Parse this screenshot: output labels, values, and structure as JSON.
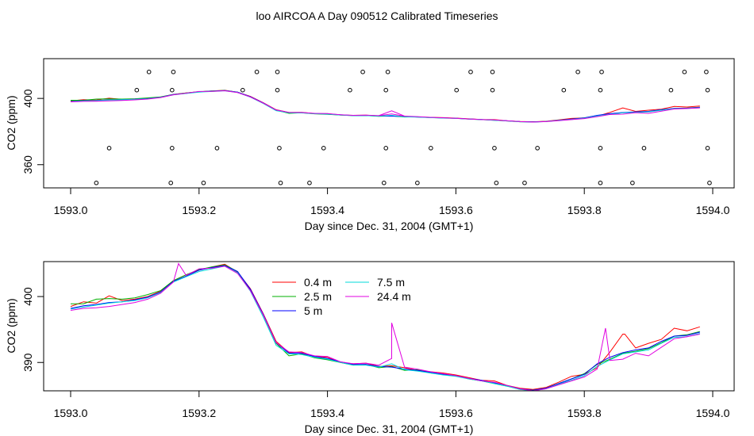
{
  "title": "loo AIRCOA A  Day 090512  Calibrated Timeseries",
  "chart_data": [
    {
      "type": "scatter",
      "note_layers": "overview panel: colored series lines plus open-circle markers",
      "xlabel": "Day since Dec. 31, 2004 (GMT+1)",
      "ylabel": "CO2 (ppm)",
      "xlim": [
        1593.0,
        1594.0
      ],
      "ylim": [
        346,
        424
      ],
      "xticks": [
        "1593.0",
        "1593.2",
        "1593.4",
        "1593.6",
        "1593.8",
        "1594.0"
      ],
      "yticks": [
        "360",
        "400"
      ],
      "ytick_values": [
        360,
        400
      ],
      "grid": false,
      "series_colors": [
        "#ff0000",
        "#00b000",
        "#0000ff",
        "#00d8d8",
        "#e000e0"
      ],
      "markers": [
        [
          1593.122,
          416
        ],
        [
          1593.16,
          416
        ],
        [
          1593.29,
          416
        ],
        [
          1593.322,
          416
        ],
        [
          1593.455,
          416
        ],
        [
          1593.494,
          416
        ],
        [
          1593.623,
          416
        ],
        [
          1593.657,
          416
        ],
        [
          1593.79,
          416
        ],
        [
          1593.827,
          416
        ],
        [
          1593.956,
          416
        ],
        [
          1593.99,
          416
        ],
        [
          1593.103,
          405
        ],
        [
          1593.158,
          405
        ],
        [
          1593.268,
          405
        ],
        [
          1593.322,
          405
        ],
        [
          1593.435,
          405
        ],
        [
          1593.491,
          405
        ],
        [
          1593.601,
          405
        ],
        [
          1593.657,
          405
        ],
        [
          1593.768,
          405
        ],
        [
          1593.825,
          405
        ],
        [
          1593.935,
          405
        ],
        [
          1593.992,
          405
        ],
        [
          1593.06,
          370
        ],
        [
          1593.158,
          370
        ],
        [
          1593.228,
          370
        ],
        [
          1593.325,
          370
        ],
        [
          1593.394,
          370
        ],
        [
          1593.491,
          370
        ],
        [
          1593.561,
          370
        ],
        [
          1593.66,
          370
        ],
        [
          1593.727,
          370
        ],
        [
          1593.825,
          370
        ],
        [
          1593.893,
          370
        ],
        [
          1593.992,
          370
        ],
        [
          1593.04,
          349
        ],
        [
          1593.156,
          349
        ],
        [
          1593.207,
          349
        ],
        [
          1593.327,
          349
        ],
        [
          1593.372,
          349
        ],
        [
          1593.488,
          349
        ],
        [
          1593.54,
          349
        ],
        [
          1593.663,
          349
        ],
        [
          1593.707,
          349
        ],
        [
          1593.825,
          349
        ],
        [
          1593.875,
          349
        ],
        [
          1593.995,
          349
        ]
      ]
    },
    {
      "type": "line",
      "xlabel": "Day since Dec. 31, 2004 (GMT+1)",
      "ylabel": "CO2 (ppm)",
      "xlim": [
        1593.0,
        1594.0
      ],
      "ylim": [
        385.7,
        405.3
      ],
      "xticks": [
        "1593.0",
        "1593.2",
        "1593.4",
        "1593.6",
        "1593.8",
        "1594.0"
      ],
      "yticks": [
        "390",
        "400"
      ],
      "ytick_values": [
        390,
        400
      ],
      "grid": false,
      "legend_position": "top-center",
      "x": [
        1593.0,
        1593.02,
        1593.04,
        1593.06,
        1593.08,
        1593.1,
        1593.12,
        1593.14,
        1593.16,
        1593.18,
        1593.2,
        1593.22,
        1593.24,
        1593.26,
        1593.28,
        1593.3,
        1593.32,
        1593.34,
        1593.36,
        1593.38,
        1593.4,
        1593.42,
        1593.44,
        1593.46,
        1593.48,
        1593.5,
        1593.52,
        1593.54,
        1593.56,
        1593.58,
        1593.6,
        1593.62,
        1593.64,
        1593.66,
        1593.68,
        1593.7,
        1593.72,
        1593.74,
        1593.76,
        1593.78,
        1593.8,
        1593.82,
        1593.84,
        1593.86,
        1593.88,
        1593.9,
        1593.92,
        1593.94,
        1593.96,
        1593.98
      ],
      "series": [
        {
          "name": "0.4 m",
          "color": "#ff0000",
          "values": [
            398.5,
            399.2,
            399.0,
            400.1,
            399.4,
            399.6,
            400.0,
            400.8,
            402.4,
            403.3,
            404.0,
            404.5,
            404.9,
            403.7,
            401.2,
            397.4,
            393.2,
            391.5,
            391.6,
            390.9,
            390.8,
            390.0,
            389.8,
            389.9,
            389.4,
            389.5,
            389.2,
            388.8,
            388.6,
            388.4,
            388.1,
            387.7,
            387.3,
            387.2,
            386.5,
            386.1,
            385.9,
            386.2,
            387.0,
            387.9,
            388.2,
            389.2,
            391.6,
            394.3,
            392.2,
            392.9,
            393.5,
            395.2,
            394.8,
            395.4
          ]
        },
        {
          "name": "2.5 m",
          "color": "#00b000",
          "values": [
            398.9,
            398.9,
            399.6,
            399.7,
            399.6,
            399.8,
            400.3,
            400.9,
            402.4,
            403.3,
            404.1,
            404.5,
            404.8,
            403.8,
            401.0,
            397.2,
            392.9,
            391.0,
            391.3,
            390.7,
            390.4,
            390.0,
            389.6,
            389.7,
            389.2,
            389.4,
            388.8,
            388.9,
            388.4,
            388.2,
            388.0,
            387.5,
            387.2,
            386.8,
            386.4,
            385.9,
            385.8,
            386.1,
            386.8,
            387.5,
            388.3,
            389.7,
            390.5,
            391.4,
            391.7,
            392.1,
            393.0,
            394.0,
            394.2,
            394.7
          ]
        },
        {
          "name": "5 m",
          "color": "#0000ff",
          "values": [
            398.2,
            398.6,
            398.8,
            399.1,
            399.2,
            399.5,
            399.9,
            400.7,
            402.3,
            403.1,
            404.0,
            404.4,
            404.7,
            403.8,
            401.1,
            397.3,
            393.0,
            391.4,
            391.4,
            390.9,
            390.6,
            390.1,
            389.7,
            389.7,
            389.4,
            389.3,
            389.0,
            388.8,
            388.5,
            388.2,
            388.0,
            387.6,
            387.3,
            386.9,
            386.5,
            386.0,
            385.8,
            386.1,
            386.8,
            387.5,
            388.2,
            389.8,
            390.8,
            391.5,
            391.9,
            392.2,
            393.2,
            394.0,
            394.1,
            394.6
          ]
        },
        {
          "name": "7.5 m",
          "color": "#00d8d8",
          "values": [
            398.1,
            398.4,
            398.7,
            399.0,
            399.2,
            399.4,
            399.8,
            400.6,
            402.2,
            403.0,
            403.8,
            404.2,
            404.6,
            403.6,
            400.8,
            396.9,
            392.6,
            391.3,
            391.2,
            390.8,
            390.5,
            390.0,
            389.6,
            389.6,
            389.3,
            389.8,
            388.9,
            388.7,
            388.4,
            388.1,
            387.9,
            387.5,
            387.2,
            386.8,
            386.4,
            385.9,
            385.7,
            386.0,
            386.7,
            387.3,
            388.0,
            389.4,
            390.4,
            391.3,
            391.6,
            391.9,
            392.9,
            393.8,
            393.9,
            394.4
          ]
        },
        {
          "name": "24.4 m",
          "color": "#e000e0",
          "values": [
            397.9,
            398.2,
            398.3,
            398.5,
            398.8,
            399.1,
            399.6,
            400.5,
            402.2,
            403.2,
            404.2,
            404.3,
            404.6,
            403.5,
            400.9,
            397.2,
            393.0,
            391.6,
            391.5,
            391.0,
            390.9,
            390.1,
            389.8,
            389.9,
            389.6,
            390.6,
            389.3,
            389.0,
            388.6,
            388.3,
            388.0,
            387.6,
            387.2,
            387.0,
            386.5,
            386.0,
            385.7,
            386.0,
            386.6,
            387.2,
            387.8,
            389.0,
            390.3,
            390.5,
            391.4,
            391.0,
            392.3,
            393.6,
            393.9,
            394.3
          ]
        }
      ],
      "spikes": [
        {
          "series": "24.4 m",
          "x": 1593.168,
          "y": 405.0
        },
        {
          "series": "24.4 m",
          "x": 1593.5,
          "y": 396.0
        },
        {
          "series": "24.4 m",
          "x": 1593.833,
          "y": 395.2
        },
        {
          "series": "0.4 m",
          "x": 1593.863,
          "y": 394.3
        }
      ]
    }
  ]
}
